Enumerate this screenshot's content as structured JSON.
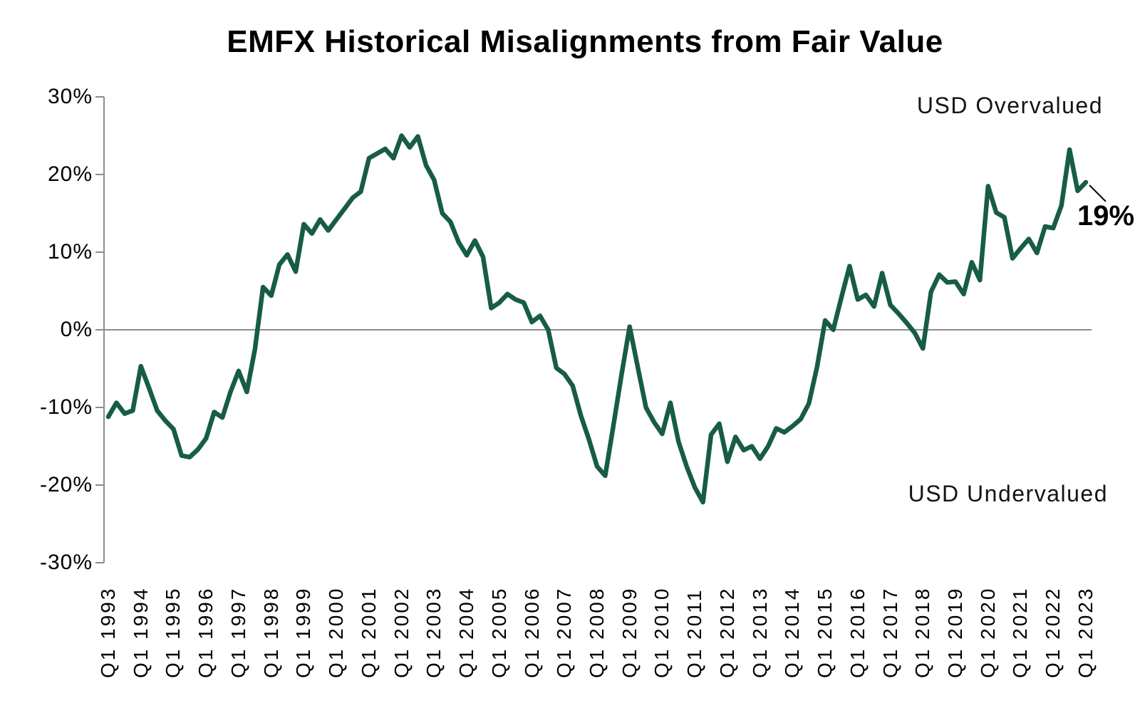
{
  "chart_data": {
    "type": "line",
    "title": "EMFX Historical Misalignments from Fair Value",
    "xlabel": "",
    "ylabel": "",
    "ylim": [
      -30,
      30
    ],
    "grid": "zero-line-only",
    "legend_position": "none",
    "x_frequency": "quarterly",
    "x_start": "Q1 1993",
    "x_end": "Q1 2023",
    "y_ticks": [
      30,
      20,
      10,
      0,
      -10,
      -20,
      -30
    ],
    "y_tick_labels": [
      "30%",
      "20%",
      "10%",
      "0%",
      "-10%",
      "-20%",
      "-30%"
    ],
    "x_tick_labels": [
      "Q1 1993",
      "Q1 1994",
      "Q1 1995",
      "Q1 1996",
      "Q1 1997",
      "Q1 1998",
      "Q1 1999",
      "Q1 2000",
      "Q1 2001",
      "Q1 2002",
      "Q1 2003",
      "Q1 2004",
      "Q1 2005",
      "Q1 2006",
      "Q1 2007",
      "Q1 2008",
      "Q1 2009",
      "Q1 2010",
      "Q1 2011",
      "Q1 2012",
      "Q1 2013",
      "Q1 2014",
      "Q1 2015",
      "Q1 2016",
      "Q1 2017",
      "Q1 2018",
      "Q1 2019",
      "Q1 2020",
      "Q1 2021",
      "Q1 2022",
      "Q1 2023"
    ],
    "series": [
      {
        "name": "EMFX misalignment from fair value (%)",
        "color": "#175C46",
        "values": [
          -11.2,
          -9.4,
          -10.8,
          -10.4,
          -4.7,
          -7.5,
          -10.4,
          -11.7,
          -12.8,
          -16.2,
          -16.4,
          -15.4,
          -14.0,
          -10.6,
          -11.3,
          -8.0,
          -5.3,
          -8.0,
          -2.5,
          5.5,
          4.4,
          8.4,
          9.7,
          7.5,
          13.6,
          12.4,
          14.2,
          12.8,
          14.2,
          15.6,
          17.0,
          17.8,
          22.1,
          22.7,
          23.3,
          22.1,
          25.0,
          23.5,
          24.9,
          21.2,
          19.3,
          15.0,
          13.9,
          11.3,
          9.6,
          11.5,
          9.4,
          2.8,
          3.5,
          4.6,
          3.9,
          3.5,
          1.0,
          1.8,
          0.0,
          -4.9,
          -5.7,
          -7.2,
          -11.0,
          -14.1,
          -17.6,
          -18.8,
          -12.4,
          -5.8,
          0.4,
          -4.8,
          -10.0,
          -11.9,
          -13.4,
          -9.4,
          -14.4,
          -17.6,
          -20.3,
          -22.2,
          -13.5,
          -12.1,
          -17.0,
          -13.8,
          -15.5,
          -15.0,
          -16.6,
          -15.0,
          -12.7,
          -13.2,
          -12.4,
          -11.5,
          -9.5,
          -4.8,
          1.2,
          0.0,
          4.2,
          8.2,
          3.9,
          4.5,
          3.0,
          7.3,
          3.2,
          2.1,
          0.9,
          -0.4,
          -2.4,
          4.9,
          7.1,
          6.1,
          6.2,
          4.6,
          8.7,
          6.4,
          18.5,
          15.1,
          14.5,
          9.2,
          10.5,
          11.7,
          9.9,
          13.3,
          13.1,
          16.0,
          23.2,
          17.9,
          19.0
        ]
      }
    ],
    "annotations": {
      "upper_region": "USD Overvalued",
      "lower_region": "USD Undervalued",
      "last_value_label": "19%",
      "last_value": 19
    }
  }
}
